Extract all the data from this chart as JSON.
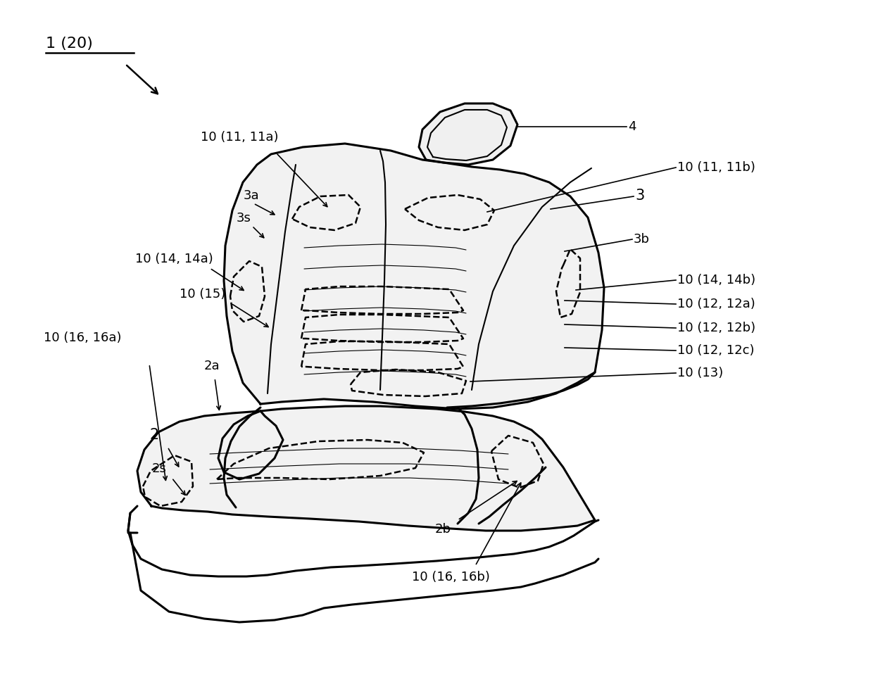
{
  "bg_color": "#ffffff",
  "line_color": "#000000",
  "fig_width": 12.4,
  "fig_height": 9.7,
  "dpi": 100,
  "labels": {
    "title_label": "1 (20)",
    "label_4": "4",
    "label_10_11_11a": "10 (11, 11a)",
    "label_10_11_11b": "10 (11, 11b)",
    "label_3a": "3a",
    "label_3s": "3s",
    "label_3": "3",
    "label_3b": "3b",
    "label_10_14_14a": "10 (14, 14a)",
    "label_10_14_14b": "10 (14, 14b)",
    "label_10_15": "10 (15)",
    "label_10_12_12a": "10 (12, 12a)",
    "label_10_12_12b": "10 (12, 12b)",
    "label_10_12_12c": "10 (12, 12c)",
    "label_10_13": "10 (13)",
    "label_10_16_16a": "10 (16, 16a)",
    "label_2a": "2a",
    "label_2": "2",
    "label_2s": "2s",
    "label_2b": "2b",
    "label_10_16_16b": "10 (16, 16b)"
  }
}
